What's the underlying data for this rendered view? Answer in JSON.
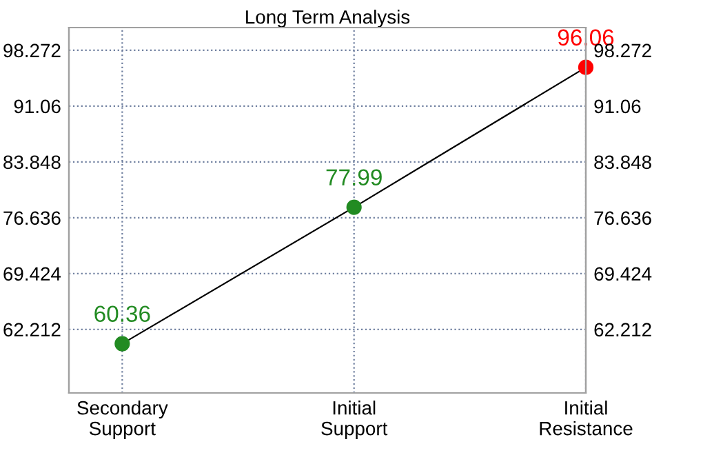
{
  "chart_data": {
    "type": "line",
    "title": "Long Term Analysis",
    "categories": [
      "Secondary\nSupport",
      "Initial\nSupport",
      "Initial\nResistance"
    ],
    "series": [
      {
        "color": "#000000",
        "colors": [
          "#228b22",
          "#228b22",
          "#ff0000"
        ],
        "values": [
          60.36,
          77.99,
          96.06
        ]
      }
    ],
    "data_labels": true,
    "marker": "circle",
    "line_style": "solid",
    "grid": true,
    "legend": false,
    "ylim": [
      54.0,
      101.2
    ],
    "yticks": [
      62.212,
      69.424,
      76.636,
      83.848,
      91.06,
      98.272
    ],
    "y2lim": [
      54.0,
      101.2
    ],
    "y2ticks": [
      62.212,
      69.424,
      76.636,
      83.848,
      91.06,
      98.272
    ]
  }
}
